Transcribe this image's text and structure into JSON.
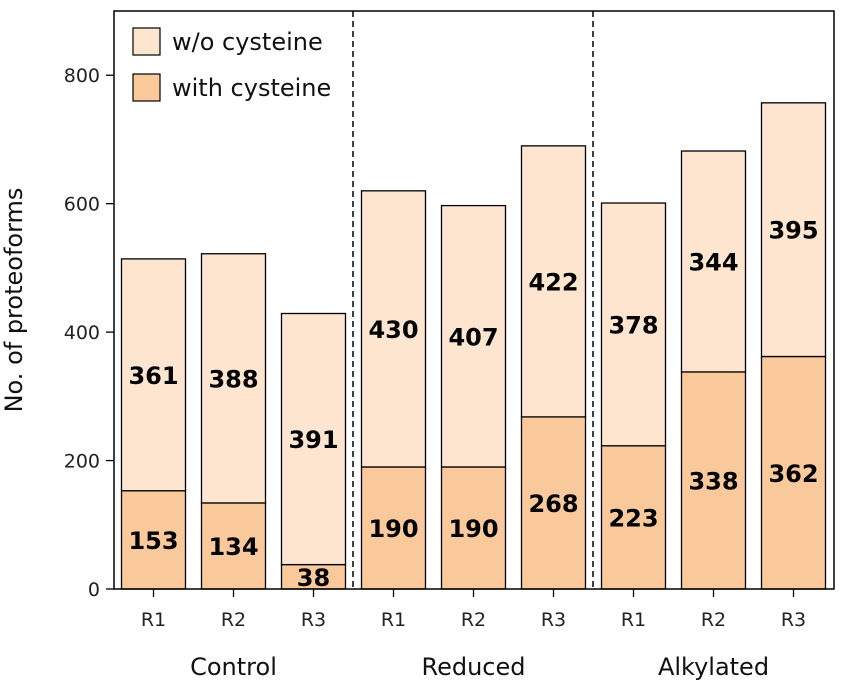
{
  "chart_data": {
    "type": "bar",
    "stacked": true,
    "ylabel": "No. of proteoforms",
    "ylim": [
      0,
      900
    ],
    "yticks": [
      0,
      200,
      400,
      600,
      800
    ],
    "groups": [
      {
        "name": "Control",
        "categories": [
          "R1",
          "R2",
          "R3"
        ]
      },
      {
        "name": "Reduced",
        "categories": [
          "R1",
          "R2",
          "R3"
        ]
      },
      {
        "name": "Alkylated",
        "categories": [
          "R1",
          "R2",
          "R3"
        ]
      }
    ],
    "categories": [
      "R1",
      "R2",
      "R3",
      "R1",
      "R2",
      "R3",
      "R1",
      "R2",
      "R3"
    ],
    "series": [
      {
        "name": "with cysteine",
        "color": "#f9c89b",
        "values": [
          153,
          134,
          38,
          190,
          190,
          268,
          223,
          338,
          362
        ]
      },
      {
        "name": "w/o cysteine",
        "color": "#fde5cf",
        "values": [
          361,
          388,
          391,
          430,
          407,
          422,
          378,
          344,
          395
        ]
      }
    ],
    "legend": {
      "position": "top-left",
      "order": [
        "w/o cysteine",
        "with cysteine"
      ]
    },
    "grid": false,
    "group_separators": "dashed"
  }
}
